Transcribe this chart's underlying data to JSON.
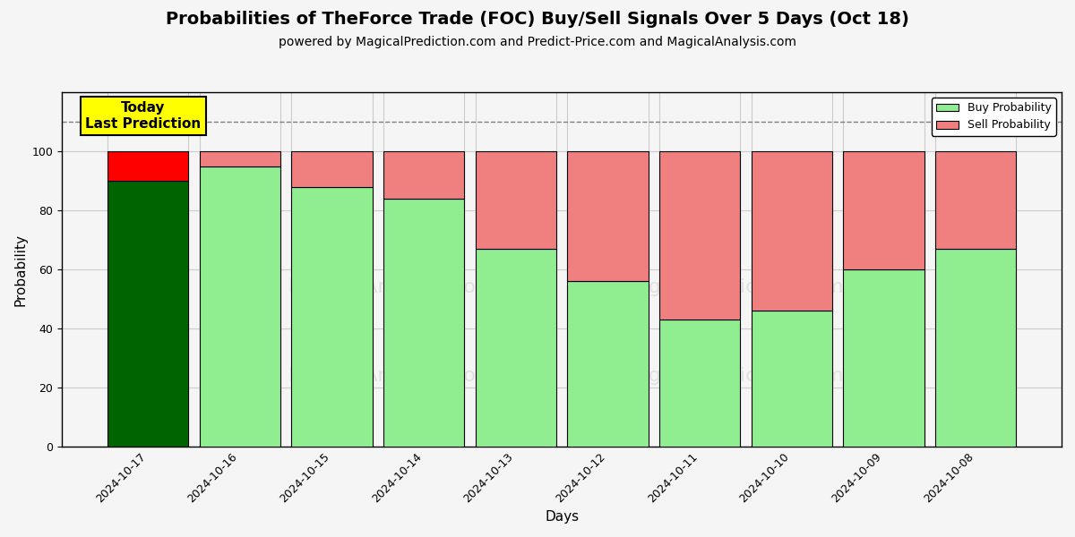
{
  "title": "Probabilities of TheForce Trade (FOC) Buy/Sell Signals Over 5 Days (Oct 18)",
  "subtitle": "powered by MagicalPrediction.com and Predict-Price.com and MagicalAnalysis.com",
  "xlabel": "Days",
  "ylabel": "Probability",
  "dates": [
    "2024-10-17",
    "2024-10-16",
    "2024-10-15",
    "2024-10-14",
    "2024-10-13",
    "2024-10-12",
    "2024-10-11",
    "2024-10-10",
    "2024-10-09",
    "2024-10-08"
  ],
  "buy_probs": [
    90,
    95,
    88,
    84,
    67,
    56,
    43,
    46,
    60,
    67
  ],
  "sell_probs": [
    10,
    5,
    12,
    16,
    33,
    44,
    57,
    54,
    40,
    33
  ],
  "today_buy_color": "#006400",
  "today_sell_color": "#FF0000",
  "buy_color": "#90EE90",
  "sell_color": "#F08080",
  "today_label_bg": "#FFFF00",
  "today_label_text": "Today\nLast Prediction",
  "dashed_line_y": 110,
  "ylim": [
    0,
    120
  ],
  "yticks": [
    0,
    20,
    40,
    60,
    80,
    100
  ],
  "grid_color": "#cccccc",
  "bar_width": 0.88,
  "title_fontsize": 14,
  "subtitle_fontsize": 10,
  "axis_label_fontsize": 11,
  "tick_fontsize": 9,
  "legend_fontsize": 9,
  "fig_bg": "#f5f5f5",
  "plot_bg": "#f5f5f5"
}
